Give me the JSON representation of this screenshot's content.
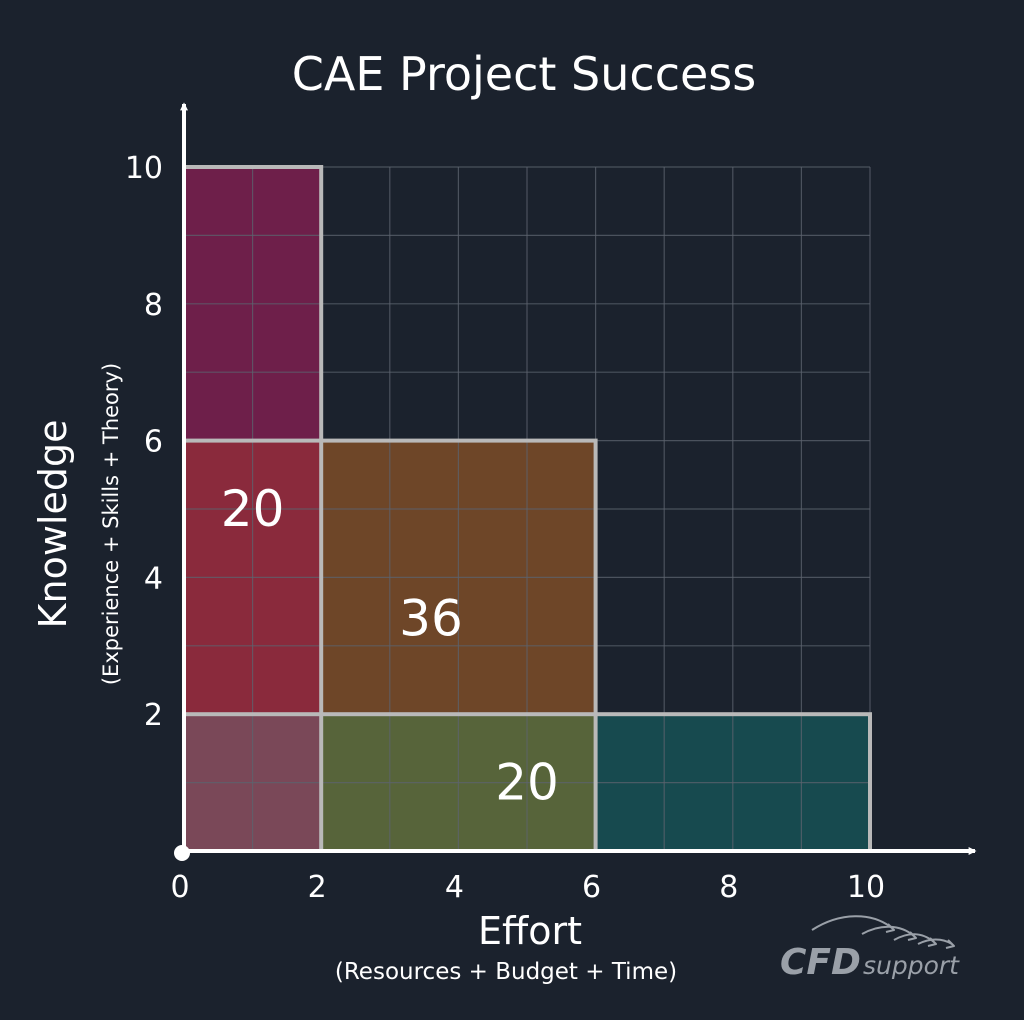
{
  "chart_data": {
    "type": "area",
    "title": "CAE Project Success",
    "xlabel": "Effort",
    "xlabel_sub": "(Resources + Budget + Time)",
    "ylabel": "Knowledge",
    "ylabel_sub": "(Experience + Skills + Theory)",
    "xlim": [
      0,
      10
    ],
    "ylim": [
      0,
      10
    ],
    "grid": true,
    "x_ticks": [
      0,
      2,
      4,
      6,
      8,
      10
    ],
    "y_ticks": [
      2,
      4,
      6,
      8,
      10
    ],
    "rectangles": [
      {
        "x": 0,
        "y": 0,
        "width": 2,
        "height": 10,
        "area": 20,
        "label": "20",
        "label_at": [
          1,
          5
        ]
      },
      {
        "x": 0,
        "y": 0,
        "width": 6,
        "height": 6,
        "area": 36,
        "label": "36",
        "label_at": [
          3.6,
          3.4
        ]
      },
      {
        "x": 0,
        "y": 0,
        "width": 10,
        "height": 2,
        "area": 20,
        "label": "20",
        "label_at": [
          5,
          1
        ]
      }
    ],
    "regions": [
      {
        "x0": 0,
        "x1": 2,
        "y0": 6,
        "y1": 10,
        "color": "#6e1f4a"
      },
      {
        "x0": 0,
        "x1": 2,
        "y0": 2,
        "y1": 6,
        "color": "#8a2a3c"
      },
      {
        "x0": 2,
        "x1": 6,
        "y0": 2,
        "y1": 6,
        "color": "#6e4628"
      },
      {
        "x0": 0,
        "x1": 2,
        "y0": 0,
        "y1": 2,
        "color": "#7a4858"
      },
      {
        "x0": 2,
        "x1": 6,
        "y0": 0,
        "y1": 2,
        "color": "#57643a"
      },
      {
        "x0": 6,
        "x1": 10,
        "y0": 0,
        "y1": 2,
        "color": "#174a4f"
      }
    ],
    "colors": {
      "background": "#1b222d",
      "grid": "#5c636d",
      "axis": "#ffffff",
      "outline": "#b9b9b9",
      "text": "#ffffff"
    }
  },
  "logo": {
    "text_main": "CFD",
    "text_sub": "support"
  }
}
